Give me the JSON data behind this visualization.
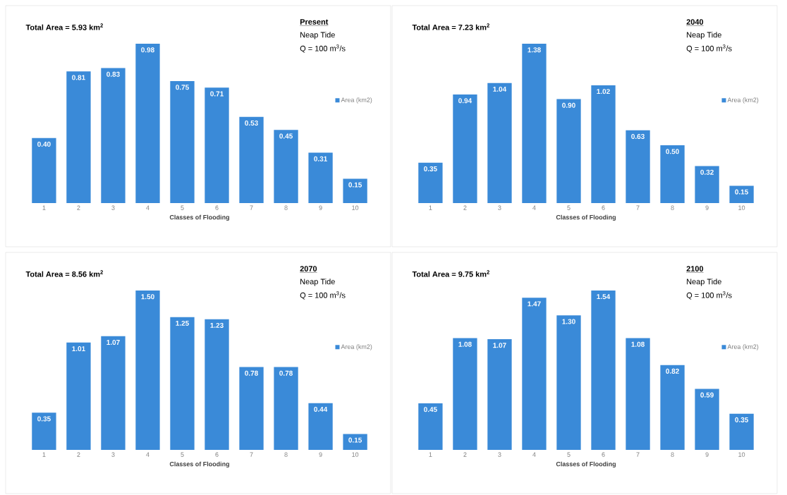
{
  "chart_data": [
    {
      "type": "bar",
      "title": "Total Area = 5.93 km$^{2}$",
      "xlabel": "Classes of Flooding",
      "categories": [
        "1",
        "2",
        "3",
        "4",
        "5",
        "6",
        "7",
        "8",
        "9",
        "10"
      ],
      "annotations": [
        "Present",
        "Neap Tide",
        "Q = 100 m$^{3}$/s"
      ],
      "legend": "right",
      "tick_labels": "x",
      "series": [
        {
          "name": "Area (km2)",
          "color": "#3a8ad8",
          "values": [
            0.4,
            0.81,
            0.83,
            0.98,
            0.75,
            0.71,
            0.53,
            0.45,
            0.31,
            0.15
          ],
          "value_labels": [
            "0.40",
            "0.81",
            "0.83",
            "0.98",
            "0.75",
            "0.71",
            "0.53",
            "0.45",
            "0.31",
            "0.15"
          ]
        }
      ]
    },
    {
      "type": "bar",
      "title": "Total Area = 7.23 km$^{2}$",
      "xlabel": "Classes of Flooding",
      "categories": [
        "1",
        "2",
        "3",
        "4",
        "5",
        "6",
        "7",
        "8",
        "9",
        "10"
      ],
      "annotations": [
        "2040",
        "Neap Tide",
        "Q = 100 m$^{3}$/s"
      ],
      "legend": "right",
      "tick_labels": "x",
      "series": [
        {
          "name": "Area (km2)",
          "color": "#3a8ad8",
          "values": [
            0.35,
            0.94,
            1.04,
            1.38,
            0.9,
            1.02,
            0.63,
            0.5,
            0.32,
            0.15
          ],
          "value_labels": [
            "0.35",
            "0.94",
            "1.04",
            "1.38",
            "0.90",
            "1.02",
            "0.63",
            "0.50",
            "0.32",
            "0.15"
          ]
        }
      ]
    },
    {
      "type": "bar",
      "title": "Total Area = 8.56 km$^{2}$",
      "xlabel": "Classes of Flooding",
      "categories": [
        "1",
        "2",
        "3",
        "4",
        "5",
        "6",
        "7",
        "8",
        "9",
        "10"
      ],
      "annotations": [
        "2070",
        "Neap Tide",
        "Q = 100 m$^{3}$/s"
      ],
      "legend": "right",
      "tick_labels": "x",
      "series": [
        {
          "name": "Area (km2)",
          "color": "#3a8ad8",
          "values": [
            0.35,
            1.01,
            1.07,
            1.5,
            1.25,
            1.23,
            0.78,
            0.78,
            0.44,
            0.15
          ],
          "value_labels": [
            "0.35",
            "1.01",
            "1.07",
            "1.50",
            "1.25",
            "1.23",
            "0.78",
            "0.78",
            "0.44",
            "0.15"
          ]
        }
      ]
    },
    {
      "type": "bar",
      "title": "Total Area = 9.75 km$^{2}$",
      "xlabel": "Classes of Flooding",
      "categories": [
        "1",
        "2",
        "3",
        "4",
        "5",
        "6",
        "7",
        "8",
        "9",
        "10"
      ],
      "annotations": [
        "2100",
        "Neap Tide",
        "Q = 100 m$^{3}$/s"
      ],
      "legend": "right",
      "tick_labels": "x",
      "series": [
        {
          "name": "Area (km2)",
          "color": "#3a8ad8",
          "values": [
            0.45,
            1.08,
            1.07,
            1.47,
            1.3,
            1.54,
            1.08,
            0.82,
            0.59,
            0.35
          ],
          "value_labels": [
            "0.45",
            "1.08",
            "1.07",
            "1.47",
            "1.30",
            "1.54",
            "1.08",
            "0.82",
            "0.59",
            "0.35"
          ]
        }
      ]
    }
  ]
}
